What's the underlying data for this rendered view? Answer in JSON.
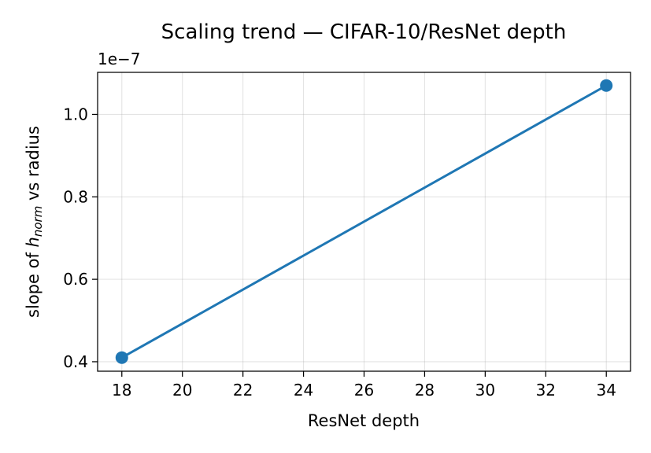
{
  "chart_data": {
    "type": "line",
    "title": "Scaling trend — CIFAR-10/ResNet depth",
    "xlabel": "ResNet depth",
    "ylabel_parts": {
      "prefix": "slope of ",
      "var": "h",
      "sub": "norm",
      "suffix": " vs radius"
    },
    "y_offset_label": "1e−7",
    "xlim": [
      17.2,
      34.8
    ],
    "ylim": [
      0.377,
      1.102
    ],
    "x_ticks": [
      18,
      20,
      22,
      24,
      26,
      28,
      30,
      32,
      34
    ],
    "x_tick_labels": [
      "18",
      "20",
      "22",
      "24",
      "26",
      "28",
      "30",
      "32",
      "34"
    ],
    "y_ticks": [
      0.4,
      0.6,
      0.8,
      1.0
    ],
    "y_tick_labels": [
      "0.4",
      "0.6",
      "0.8",
      "1.0"
    ],
    "grid": true,
    "series": [
      {
        "color": "#1f77b4",
        "marker": "circle",
        "points": [
          {
            "x": 18,
            "y": 0.41
          },
          {
            "x": 34,
            "y": 1.07
          }
        ]
      }
    ]
  }
}
